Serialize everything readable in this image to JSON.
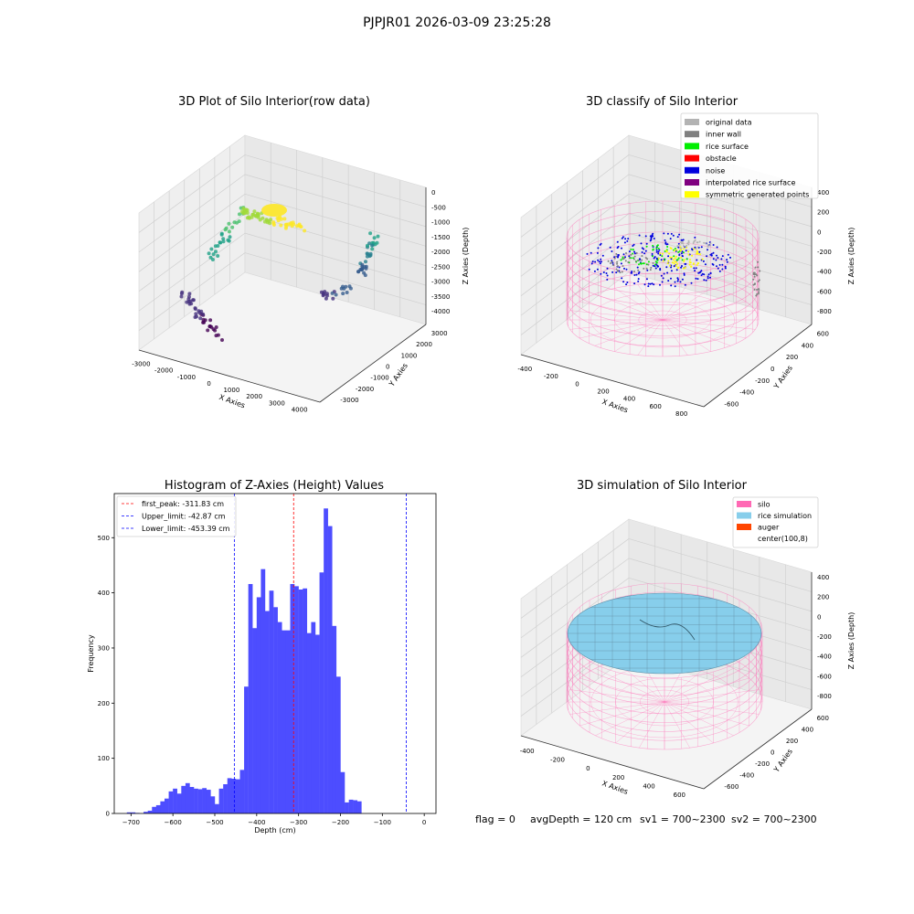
{
  "suptitle": "PJPJR01 2026-03-09 23:25:28",
  "chart_data": [
    {
      "type": "scatter",
      "title": "3D Plot of Silo Interior(row data)",
      "xlabel": "X Axies",
      "ylabel": "Y Axies",
      "zlabel": "Z Axies (Depth)",
      "xticks": [
        "-3000",
        "-2000",
        "-1000",
        "0",
        "1000",
        "2000",
        "3000",
        "4000"
      ],
      "yticks": [
        "-3000",
        "-2000",
        "-1000",
        "0",
        "1000",
        "2000",
        "3000"
      ],
      "zticks": [
        "0",
        "-500",
        "-1000",
        "-1500",
        "-2000",
        "-2500",
        "-3000",
        "-3500",
        "-4000"
      ],
      "colormap": "viridis"
    },
    {
      "type": "scatter",
      "title": "3D classify of Silo Interior",
      "xlabel": "X Axies",
      "ylabel": "Y Axies",
      "zlabel": "Z Axies (Depth)",
      "xticks": [
        "-400",
        "-200",
        "0",
        "200",
        "400",
        "600",
        "800"
      ],
      "yticks": [
        "-600",
        "-400",
        "-200",
        "0",
        "200",
        "400",
        "600"
      ],
      "zticks": [
        "400",
        "200",
        "0",
        "-200",
        "-400",
        "-600",
        "-800"
      ],
      "legend": [
        {
          "label": "original data",
          "color": "#b3b3b3"
        },
        {
          "label": "inner wall",
          "color": "#808080"
        },
        {
          "label": "rice surface",
          "color": "#00ee00"
        },
        {
          "label": "obstacle",
          "color": "#ff0000"
        },
        {
          "label": "noise",
          "color": "#0000dd"
        },
        {
          "label": "interpolated rice surface",
          "color": "#800080"
        },
        {
          "label": "symmetric generated points",
          "color": "#ffff00"
        }
      ],
      "legend_loc": "upper right"
    },
    {
      "type": "bar",
      "title": "Histogram of Z-Axies (Height) Values",
      "xlabel": "Depth (cm)",
      "ylabel": "Frequency",
      "xlim": [
        -740,
        28
      ],
      "ylim": [
        0,
        580
      ],
      "xticks": [
        -700,
        -600,
        -500,
        -400,
        -300,
        -200,
        -100,
        0
      ],
      "yticks": [
        0,
        100,
        200,
        300,
        400,
        500
      ],
      "bar_color": "#4d4dff",
      "bins": [
        {
          "x0": -710,
          "x1": -700,
          "v": 2
        },
        {
          "x0": -700,
          "x1": -690,
          "v": 2
        },
        {
          "x0": -690,
          "x1": -680,
          "v": 1
        },
        {
          "x0": -680,
          "x1": -670,
          "v": 0
        },
        {
          "x0": -670,
          "x1": -660,
          "v": 3
        },
        {
          "x0": -660,
          "x1": -650,
          "v": 5
        },
        {
          "x0": -650,
          "x1": -640,
          "v": 12
        },
        {
          "x0": -640,
          "x1": -630,
          "v": 15
        },
        {
          "x0": -630,
          "x1": -620,
          "v": 22
        },
        {
          "x0": -620,
          "x1": -610,
          "v": 27
        },
        {
          "x0": -610,
          "x1": -600,
          "v": 40
        },
        {
          "x0": -600,
          "x1": -590,
          "v": 45
        },
        {
          "x0": -590,
          "x1": -580,
          "v": 36
        },
        {
          "x0": -580,
          "x1": -570,
          "v": 50
        },
        {
          "x0": -570,
          "x1": -560,
          "v": 55
        },
        {
          "x0": -560,
          "x1": -550,
          "v": 48
        },
        {
          "x0": -550,
          "x1": -540,
          "v": 45
        },
        {
          "x0": -540,
          "x1": -530,
          "v": 44
        },
        {
          "x0": -530,
          "x1": -520,
          "v": 46
        },
        {
          "x0": -520,
          "x1": -510,
          "v": 43
        },
        {
          "x0": -510,
          "x1": -500,
          "v": 31
        },
        {
          "x0": -500,
          "x1": -490,
          "v": 17
        },
        {
          "x0": -490,
          "x1": -480,
          "v": 45
        },
        {
          "x0": -480,
          "x1": -470,
          "v": 53
        },
        {
          "x0": -470,
          "x1": -460,
          "v": 64
        },
        {
          "x0": -460,
          "x1": -450,
          "v": 63
        },
        {
          "x0": -450,
          "x1": -440,
          "v": 62
        },
        {
          "x0": -440,
          "x1": -430,
          "v": 79
        },
        {
          "x0": -430,
          "x1": -420,
          "v": 230
        },
        {
          "x0": -420,
          "x1": -410,
          "v": 416
        },
        {
          "x0": -410,
          "x1": -400,
          "v": 336
        },
        {
          "x0": -400,
          "x1": -390,
          "v": 392
        },
        {
          "x0": -390,
          "x1": -380,
          "v": 443
        },
        {
          "x0": -380,
          "x1": -370,
          "v": 367
        },
        {
          "x0": -370,
          "x1": -360,
          "v": 404
        },
        {
          "x0": -360,
          "x1": -350,
          "v": 374
        },
        {
          "x0": -350,
          "x1": -340,
          "v": 347
        },
        {
          "x0": -340,
          "x1": -330,
          "v": 332
        },
        {
          "x0": -330,
          "x1": -320,
          "v": 332
        },
        {
          "x0": -320,
          "x1": -310,
          "v": 416
        },
        {
          "x0": -310,
          "x1": -300,
          "v": 412
        },
        {
          "x0": -300,
          "x1": -290,
          "v": 406
        },
        {
          "x0": -290,
          "x1": -280,
          "v": 408
        },
        {
          "x0": -280,
          "x1": -270,
          "v": 327
        },
        {
          "x0": -270,
          "x1": -260,
          "v": 347
        },
        {
          "x0": -260,
          "x1": -250,
          "v": 324
        },
        {
          "x0": -250,
          "x1": -240,
          "v": 437
        },
        {
          "x0": -240,
          "x1": -230,
          "v": 553
        },
        {
          "x0": -230,
          "x1": -220,
          "v": 521
        },
        {
          "x0": -220,
          "x1": -210,
          "v": 340
        },
        {
          "x0": -210,
          "x1": -200,
          "v": 248
        },
        {
          "x0": -200,
          "x1": -190,
          "v": 75
        },
        {
          "x0": -190,
          "x1": -180,
          "v": 20
        },
        {
          "x0": -180,
          "x1": -170,
          "v": 25
        },
        {
          "x0": -170,
          "x1": -160,
          "v": 24
        },
        {
          "x0": -160,
          "x1": -150,
          "v": 22
        }
      ],
      "vlines": [
        {
          "label": "first_peak: -311.83 cm",
          "x": -311.83,
          "color": "#ff0000"
        },
        {
          "label": "Upper_limit: -42.87 cm",
          "x": -42.87,
          "color": "#0000ff"
        },
        {
          "label": "Lower_limit: -453.39 cm",
          "x": -453.39,
          "color": "#0000ff"
        }
      ],
      "legend_loc": "upper left"
    },
    {
      "type": "surface",
      "title": "3D simulation of Silo Interior",
      "xlabel": "X Axies",
      "ylabel": "Y Axies",
      "zlabel": "Z Axies (Depth)",
      "xticks": [
        "-400",
        "-200",
        "0",
        "200",
        "400",
        "600"
      ],
      "yticks": [
        "-600",
        "-400",
        "-200",
        "0",
        "200",
        "400",
        "600"
      ],
      "zticks": [
        "400",
        "200",
        "0",
        "-200",
        "-400",
        "-600",
        "-800"
      ],
      "legend": [
        {
          "label": "silo",
          "color": "#ff69b4"
        },
        {
          "label": "rice simulation",
          "color": "#87ceeb"
        },
        {
          "label": "auger",
          "color": "#ff4500"
        },
        {
          "label": "center(100,8)",
          "color": ""
        }
      ],
      "legend_loc": "upper right"
    }
  ],
  "footer": {
    "flag": "flag = 0",
    "avg": "avgDepth = 120 cm",
    "sv1": "sv1 = 700~2300",
    "sv2": "sv2 = 700~2300"
  }
}
